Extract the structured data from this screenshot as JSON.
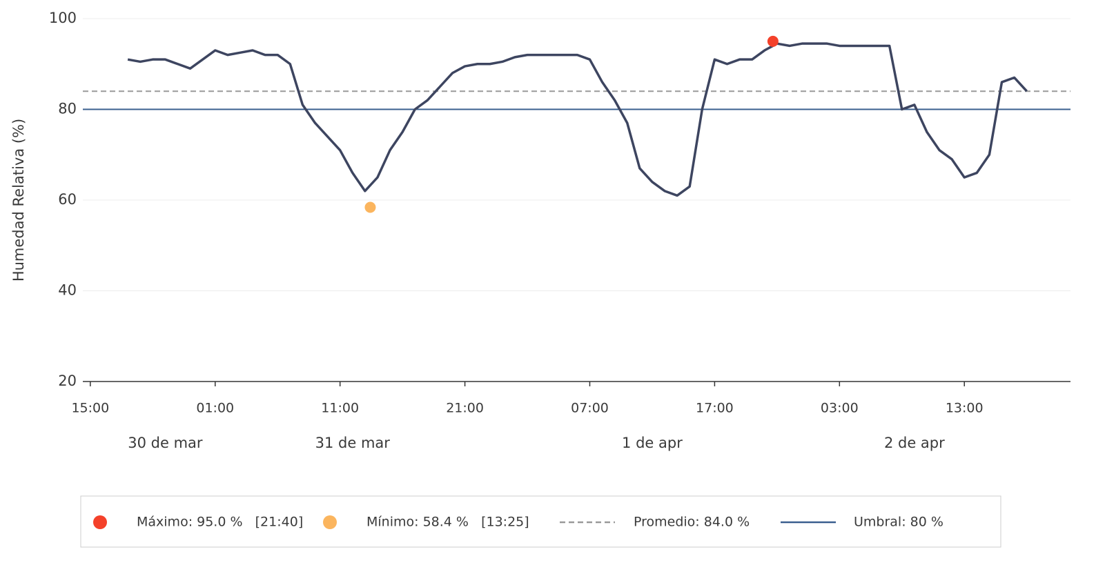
{
  "chart_data": {
    "type": "line",
    "ylabel": "Humedad Relativa (%)",
    "x": [
      18,
      19,
      20,
      21,
      22,
      23,
      24,
      25,
      26,
      27,
      28,
      29,
      30,
      31,
      32,
      33,
      34,
      35,
      36,
      37,
      38,
      39,
      40,
      41,
      42,
      43,
      44,
      45,
      46,
      47,
      48,
      49,
      50,
      51,
      52,
      53,
      54,
      55,
      56,
      57,
      58,
      59,
      60,
      61,
      62,
      63,
      64,
      65,
      66,
      67,
      68,
      69,
      70,
      71,
      72,
      73,
      74,
      75,
      76,
      77,
      78,
      79,
      80,
      81,
      82,
      83,
      84,
      85,
      86,
      87,
      88,
      89,
      90
    ],
    "series": [
      {
        "name": "Humedad Relativa",
        "color": "#3d4560",
        "values": [
          91,
          90.5,
          91,
          91,
          90,
          89,
          91,
          93,
          92,
          92.5,
          93,
          92,
          92,
          90,
          81,
          77,
          74,
          71,
          66,
          62,
          65,
          71,
          75,
          80,
          82,
          85,
          88,
          89.5,
          90,
          90,
          90.5,
          91.5,
          92,
          92,
          92,
          92,
          92,
          91,
          86,
          82,
          77,
          67,
          64,
          62,
          61,
          63,
          80,
          91,
          90,
          91,
          91,
          93,
          94.5,
          94,
          94.5,
          94.5,
          94.5,
          94,
          94,
          94,
          94,
          94,
          80,
          81,
          75,
          71,
          69,
          65,
          66,
          70,
          86,
          87,
          84
        ]
      }
    ],
    "xlim": [
      14.4,
      93.5
    ],
    "ylim": [
      20,
      100
    ],
    "yticks": [
      20,
      40,
      60,
      80,
      100
    ],
    "xticks": [
      {
        "value": 15,
        "label": "15:00"
      },
      {
        "value": 25,
        "label": "01:00"
      },
      {
        "value": 35,
        "label": "11:00"
      },
      {
        "value": 45,
        "label": "21:00"
      },
      {
        "value": 55,
        "label": "07:00"
      },
      {
        "value": 65,
        "label": "17:00"
      },
      {
        "value": 75,
        "label": "03:00"
      },
      {
        "value": 85,
        "label": "13:00"
      }
    ],
    "date_labels": [
      {
        "value": 21,
        "label": "30 de mar"
      },
      {
        "value": 36,
        "label": "31 de mar"
      },
      {
        "value": 60,
        "label": "1 de apr"
      },
      {
        "value": 81,
        "label": "2 de apr"
      }
    ],
    "markers": [
      {
        "name": "Máximo: 95.0 %   [21:40]",
        "x": 69.67,
        "y": 95,
        "color": "#f4412a"
      },
      {
        "name": "Mínimo: 58.4 %   [13:25]",
        "x": 37.42,
        "y": 58.4,
        "color": "#fbb55e"
      }
    ],
    "hlines": [
      {
        "name": "Promedio: 84.0 %",
        "value": 84,
        "color": "#999999",
        "dashed": true
      },
      {
        "name": "Umbral: 80 %",
        "value": 80,
        "color": "#3a5f8f",
        "dashed": false
      }
    ],
    "grid": true
  }
}
